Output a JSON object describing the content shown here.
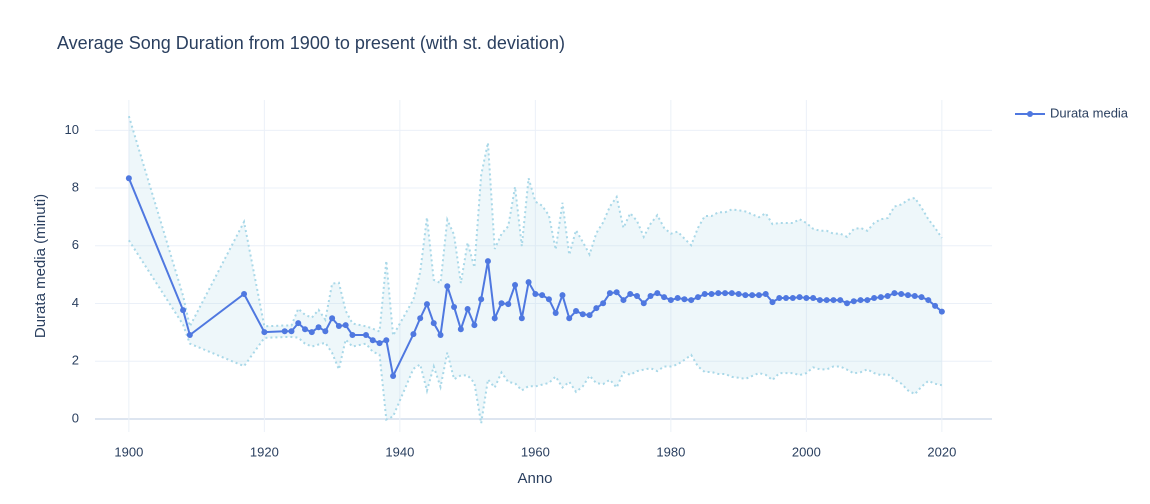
{
  "chart_data": {
    "type": "line",
    "title": "Average Song Duration from 1900 to present (with st. deviation)",
    "xlabel": "Anno",
    "ylabel": "Durata media (minuti)",
    "x": [
      1900,
      1908,
      1909,
      1917,
      1920,
      1923,
      1924,
      1925,
      1926,
      1927,
      1928,
      1929,
      1930,
      1931,
      1932,
      1933,
      1935,
      1936,
      1937,
      1938,
      1939,
      1942,
      1943,
      1944,
      1945,
      1946,
      1947,
      1948,
      1949,
      1950,
      1951,
      1952,
      1953,
      1954,
      1955,
      1956,
      1957,
      1958,
      1959,
      1960,
      1961,
      1962,
      1963,
      1964,
      1965,
      1966,
      1967,
      1968,
      1969,
      1970,
      1971,
      1972,
      1973,
      1974,
      1975,
      1976,
      1977,
      1978,
      1979,
      1980,
      1981,
      1982,
      1983,
      1984,
      1985,
      1986,
      1987,
      1988,
      1989,
      1990,
      1991,
      1992,
      1993,
      1994,
      1995,
      1996,
      1997,
      1998,
      1999,
      2000,
      2001,
      2002,
      2003,
      2004,
      2005,
      2006,
      2007,
      2008,
      2009,
      2010,
      2011,
      2012,
      2013,
      2014,
      2015,
      2016,
      2017,
      2018,
      2019,
      2020
    ],
    "series": [
      {
        "name": "Durata media",
        "color": "#4f78e0",
        "values": [
          8.34,
          3.77,
          2.91,
          4.33,
          3.01,
          3.04,
          3.04,
          3.32,
          3.11,
          3.01,
          3.18,
          3.04,
          3.49,
          3.22,
          3.25,
          2.91,
          2.91,
          2.73,
          2.63,
          2.73,
          1.49,
          2.94,
          3.49,
          3.98,
          3.32,
          2.91,
          4.6,
          3.88,
          3.11,
          3.81,
          3.25,
          4.15,
          5.47,
          3.49,
          4.01,
          3.98,
          4.64,
          3.49,
          4.74,
          4.33,
          4.29,
          4.15,
          3.67,
          4.29,
          3.49,
          3.74,
          3.63,
          3.6,
          3.84,
          4.01,
          4.36,
          4.39,
          4.12,
          4.33,
          4.26,
          4.01,
          4.26,
          4.36,
          4.22,
          4.12,
          4.19,
          4.15,
          4.12,
          4.22,
          4.33,
          4.33,
          4.36,
          4.36,
          4.36,
          4.33,
          4.29,
          4.29,
          4.29,
          4.33,
          4.05,
          4.19,
          4.19,
          4.19,
          4.22,
          4.19,
          4.19,
          4.12,
          4.12,
          4.12,
          4.12,
          4.01,
          4.08,
          4.12,
          4.12,
          4.19,
          4.22,
          4.26,
          4.36,
          4.33,
          4.29,
          4.26,
          4.22,
          4.12,
          3.92,
          3.72
        ]
      }
    ],
    "band": {
      "color": "#a9d8e8",
      "upper": [
        10.49,
        4.27,
        3.21,
        6.83,
        3.21,
        3.24,
        3.24,
        3.82,
        3.61,
        3.51,
        3.78,
        3.44,
        4.69,
        4.72,
        3.75,
        3.31,
        3.21,
        3.13,
        3.03,
        5.48,
        2.89,
        4.14,
        5.09,
        6.98,
        4.82,
        4.71,
        6.9,
        6.38,
        4.71,
        6.11,
        5.25,
        8.45,
        9.57,
        5.89,
        6.41,
        6.68,
        8.04,
        5.99,
        8.34,
        7.53,
        7.39,
        7.05,
        5.87,
        7.49,
        5.69,
        6.54,
        6.13,
        5.7,
        6.44,
        6.81,
        7.36,
        7.69,
        6.62,
        7.13,
        6.86,
        6.31,
        6.76,
        7.06,
        6.62,
        6.42,
        6.49,
        6.25,
        6.02,
        6.62,
        7.03,
        7.03,
        7.16,
        7.16,
        7.26,
        7.23,
        7.19,
        7.09,
        6.99,
        7.13,
        6.75,
        6.79,
        6.79,
        6.79,
        6.92,
        6.79,
        6.59,
        6.52,
        6.52,
        6.42,
        6.42,
        6.31,
        6.58,
        6.62,
        6.52,
        6.79,
        6.92,
        6.96,
        7.36,
        7.43,
        7.59,
        7.66,
        7.32,
        6.92,
        6.62,
        6.27
      ],
      "lower": [
        6.19,
        3.27,
        2.61,
        1.83,
        2.81,
        2.84,
        2.84,
        2.82,
        2.61,
        2.51,
        2.58,
        2.64,
        2.29,
        1.72,
        2.75,
        2.51,
        2.61,
        2.33,
        2.23,
        -0.02,
        0.09,
        1.74,
        1.89,
        0.98,
        1.82,
        1.11,
        2.3,
        1.38,
        1.51,
        1.51,
        1.25,
        -0.15,
        1.37,
        1.09,
        1.61,
        1.28,
        1.24,
        0.99,
        1.14,
        1.13,
        1.19,
        1.25,
        1.47,
        1.09,
        1.29,
        0.94,
        1.13,
        1.5,
        1.24,
        1.21,
        1.36,
        1.09,
        1.62,
        1.53,
        1.66,
        1.71,
        1.76,
        1.66,
        1.82,
        1.82,
        1.89,
        2.05,
        2.22,
        1.82,
        1.63,
        1.63,
        1.56,
        1.56,
        1.46,
        1.43,
        1.39,
        1.49,
        1.59,
        1.53,
        1.35,
        1.59,
        1.59,
        1.59,
        1.52,
        1.59,
        1.79,
        1.72,
        1.72,
        1.82,
        1.82,
        1.71,
        1.58,
        1.62,
        1.72,
        1.59,
        1.52,
        1.56,
        1.36,
        1.23,
        0.99,
        0.86,
        1.12,
        1.32,
        1.22,
        1.17
      ]
    },
    "xlim": [
      1895,
      2027.4
    ],
    "ylim": [
      -0.45,
      11.05
    ],
    "xticks": [
      1900,
      1920,
      1940,
      1960,
      1980,
      2000,
      2020
    ],
    "yticks": [
      0,
      2,
      4,
      6,
      8,
      10
    ],
    "grid": true,
    "legend": "right"
  }
}
